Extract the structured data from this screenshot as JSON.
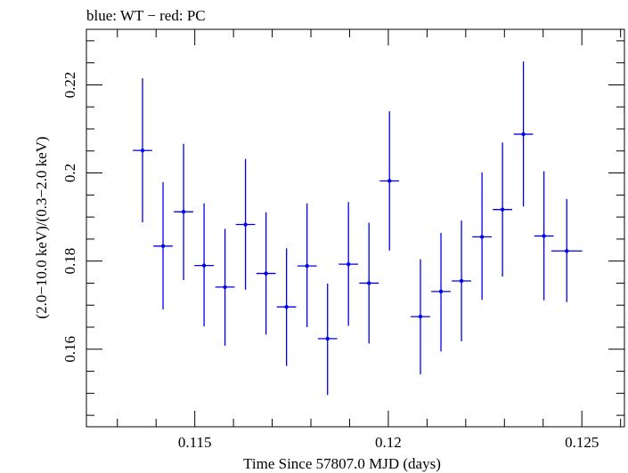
{
  "chart_data": {
    "type": "scatter",
    "title": "blue: WT − red: PC",
    "xlabel": "Time Since 57807.0 MJD (days)",
    "ylabel": "(2.0−10.0 keV)/(0.3−2.0 keV)",
    "xlim": [
      0.1122,
      0.1261
    ],
    "ylim": [
      0.1424,
      0.2326
    ],
    "x_ticks": [
      0.115,
      0.12,
      0.125
    ],
    "x_tick_labels": [
      "0.115",
      "0.12",
      "0.125"
    ],
    "y_ticks": [
      0.16,
      0.18,
      0.2,
      0.22
    ],
    "y_tick_labels": [
      "0.16",
      "0.18",
      "0.2",
      "0.22"
    ],
    "grid": false,
    "colors": {
      "series": "#0000ee",
      "axes": "#000000"
    },
    "series": [
      {
        "marker_color": "#0000ee",
        "points": [
          {
            "x": 0.11365,
            "xerr": 0.00025,
            "y": 0.2051,
            "ylo": 0.1888,
            "yhi": 0.2215
          },
          {
            "x": 0.11418,
            "xerr": 0.00025,
            "y": 0.1834,
            "ylo": 0.169,
            "yhi": 0.1979
          },
          {
            "x": 0.11471,
            "xerr": 0.00025,
            "y": 0.1912,
            "ylo": 0.1757,
            "yhi": 0.2066
          },
          {
            "x": 0.11524,
            "xerr": 0.00025,
            "y": 0.179,
            "ylo": 0.1652,
            "yhi": 0.1931
          },
          {
            "x": 0.11578,
            "xerr": 0.00025,
            "y": 0.1741,
            "ylo": 0.1608,
            "yhi": 0.1873
          },
          {
            "x": 0.11631,
            "xerr": 0.00025,
            "y": 0.1883,
            "ylo": 0.1735,
            "yhi": 0.2032
          },
          {
            "x": 0.11684,
            "xerr": 0.00025,
            "y": 0.1772,
            "ylo": 0.1633,
            "yhi": 0.1911
          },
          {
            "x": 0.11737,
            "xerr": 0.00025,
            "y": 0.1696,
            "ylo": 0.1562,
            "yhi": 0.1829
          },
          {
            "x": 0.1179,
            "xerr": 0.00025,
            "y": 0.1789,
            "ylo": 0.165,
            "yhi": 0.1931
          },
          {
            "x": 0.11843,
            "xerr": 0.00025,
            "y": 0.1624,
            "ylo": 0.1496,
            "yhi": 0.1749
          },
          {
            "x": 0.11897,
            "xerr": 0.00025,
            "y": 0.1793,
            "ylo": 0.1653,
            "yhi": 0.1934
          },
          {
            "x": 0.1195,
            "xerr": 0.00025,
            "y": 0.175,
            "ylo": 0.1613,
            "yhi": 0.1887
          },
          {
            "x": 0.12003,
            "xerr": 0.00025,
            "y": 0.1982,
            "ylo": 0.1824,
            "yhi": 0.214
          },
          {
            "x": 0.12083,
            "xerr": 0.00025,
            "y": 0.1674,
            "ylo": 0.1543,
            "yhi": 0.1804
          },
          {
            "x": 0.12136,
            "xerr": 0.00025,
            "y": 0.1731,
            "ylo": 0.1595,
            "yhi": 0.1864
          },
          {
            "x": 0.12189,
            "xerr": 0.00025,
            "y": 0.1755,
            "ylo": 0.1618,
            "yhi": 0.1892
          },
          {
            "x": 0.12242,
            "xerr": 0.00025,
            "y": 0.1855,
            "ylo": 0.1712,
            "yhi": 0.2001
          },
          {
            "x": 0.12295,
            "xerr": 0.00025,
            "y": 0.1917,
            "ylo": 0.1765,
            "yhi": 0.2069
          },
          {
            "x": 0.12349,
            "xerr": 0.00025,
            "y": 0.2088,
            "ylo": 0.1924,
            "yhi": 0.2253
          },
          {
            "x": 0.12402,
            "xerr": 0.00025,
            "y": 0.1857,
            "ylo": 0.1711,
            "yhi": 0.2004
          },
          {
            "x": 0.12461,
            "xerr": 0.0004,
            "y": 0.1823,
            "ylo": 0.1707,
            "yhi": 0.1941
          }
        ]
      }
    ]
  }
}
